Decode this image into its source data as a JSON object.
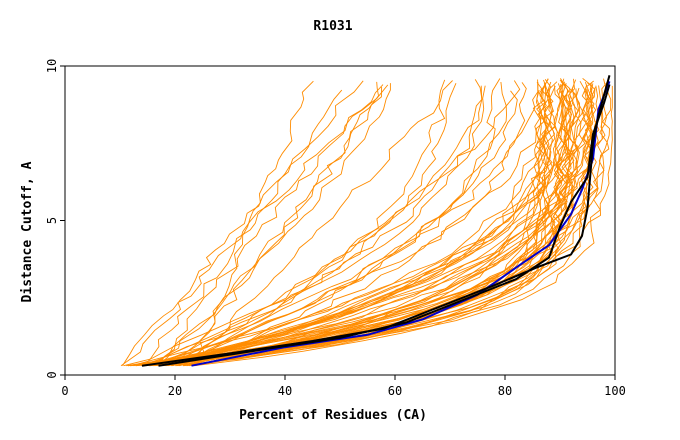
{
  "chart_data": {
    "type": "line",
    "title": "R1031",
    "xlabel": "Percent of Residues (CA)",
    "ylabel": "Distance Cutoff, A",
    "xlim": [
      0,
      100
    ],
    "ylim": [
      0,
      10
    ],
    "x_ticks": [
      "0",
      "20",
      "40",
      "60",
      "80",
      "100"
    ],
    "y_ticks": [
      "0",
      "5",
      "10"
    ],
    "grid": false,
    "legend": "none",
    "background_colors": {
      "orange": "#ff8c00"
    },
    "highlight_series": [
      {
        "color": "#0000cc",
        "points": [
          [
            23,
            0.3
          ],
          [
            40,
            0.9
          ],
          [
            55,
            1.3
          ],
          [
            65,
            1.8
          ],
          [
            75,
            2.6
          ],
          [
            83,
            3.6
          ],
          [
            88,
            4.2
          ],
          [
            92,
            5.2
          ],
          [
            94,
            6.0
          ],
          [
            96,
            7.0
          ],
          [
            97,
            8.6
          ],
          [
            99,
            9.5
          ]
        ]
      },
      {
        "color": "#000000",
        "points": [
          [
            14,
            0.3
          ],
          [
            30,
            0.7
          ],
          [
            45,
            1.1
          ],
          [
            58,
            1.5
          ],
          [
            68,
            2.2
          ],
          [
            78,
            2.9
          ],
          [
            86,
            3.5
          ],
          [
            92,
            3.9
          ],
          [
            94,
            4.5
          ],
          [
            95,
            5.4
          ],
          [
            96,
            7.5
          ],
          [
            97,
            8.4
          ],
          [
            99,
            9.7
          ]
        ]
      },
      {
        "color": "#000000",
        "points": [
          [
            17,
            0.3
          ],
          [
            35,
            0.8
          ],
          [
            50,
            1.2
          ],
          [
            62,
            1.7
          ],
          [
            72,
            2.4
          ],
          [
            82,
            3.1
          ],
          [
            88,
            3.8
          ],
          [
            90,
            4.8
          ],
          [
            92,
            5.6
          ],
          [
            95,
            6.4
          ],
          [
            96,
            7.8
          ],
          [
            98,
            8.8
          ],
          [
            99,
            9.4
          ]
        ]
      }
    ]
  }
}
